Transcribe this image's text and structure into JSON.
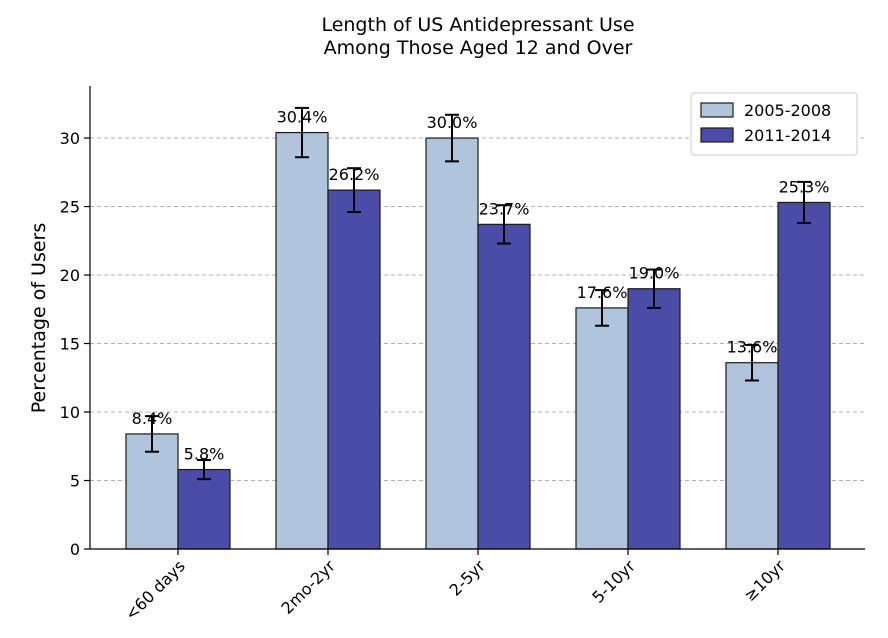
{
  "chart_data": {
    "type": "bar",
    "title": [
      "Length of US Antidepressant Use",
      "Among Those Aged 12 and Over"
    ],
    "xlabel": "",
    "ylabel": "Percentage of Users",
    "ylim": [
      0,
      33.8
    ],
    "yticks": [
      0,
      5,
      10,
      15,
      20,
      25,
      30
    ],
    "grid": "y-dashed",
    "legend_position": "top-right",
    "categories": [
      "<60 days",
      "2mo-2yr",
      "2-5yr",
      "5-10yr",
      "≥10yr"
    ],
    "series": [
      {
        "name": "2005-2008",
        "color": "#b0c4de",
        "values": [
          8.4,
          30.4,
          30.0,
          17.6,
          13.6
        ],
        "errors": [
          1.3,
          1.8,
          1.7,
          1.3,
          1.3
        ],
        "labels": [
          "8.4%",
          "30.4%",
          "30.0%",
          "17.6%",
          "13.6%"
        ]
      },
      {
        "name": "2011-2014",
        "color": "#4b4ba8",
        "values": [
          5.8,
          26.2,
          23.7,
          19.0,
          25.3
        ],
        "errors": [
          0.7,
          1.6,
          1.4,
          1.4,
          1.5
        ],
        "labels": [
          "5.8%",
          "26.2%",
          "23.7%",
          "19.0%",
          "25.3%"
        ]
      }
    ]
  }
}
